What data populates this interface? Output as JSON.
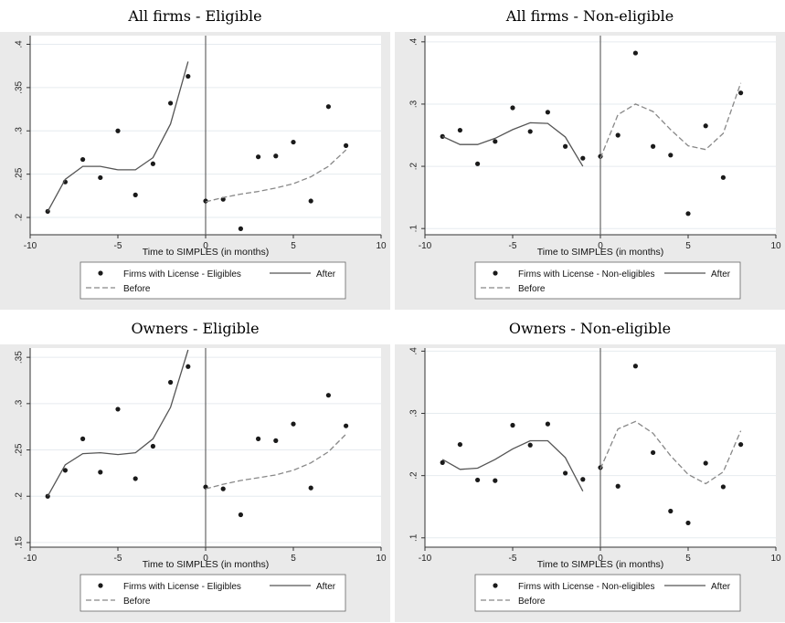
{
  "colors": {
    "panel_background": "#eaeaea",
    "plot_background": "#ffffff",
    "grid": "#e6ebef",
    "markers": "#1a1a1a",
    "after_line": "#555555",
    "before_line": "#888888",
    "event_line": "#666666"
  },
  "shared": {
    "xlabel": "Time to SIMPLES (in months)",
    "xticks": [
      -10,
      -5,
      0,
      5,
      10
    ],
    "xtick_labels": [
      "-10",
      "-5",
      "0",
      "5",
      "10"
    ],
    "legend": {
      "after": "After",
      "before": "Before"
    }
  },
  "chart_data": [
    {
      "type": "scatter",
      "title": "All firms - Eligible",
      "xlim": [
        -10,
        10
      ],
      "ylim": [
        0.18,
        0.41
      ],
      "yticks": [
        0.2,
        0.25,
        0.3,
        0.35,
        0.4
      ],
      "ytick_labels": [
        ".2",
        ".25",
        ".3",
        ".35",
        ".4"
      ],
      "legend_position": "bottom",
      "series": [
        {
          "name": "Firms with License - Eligibles",
          "style": "markers",
          "x": [
            -9,
            -8,
            -7,
            -6,
            -5,
            -4,
            -3,
            -2,
            -1,
            0,
            1,
            2,
            3,
            4,
            5,
            6,
            7,
            8
          ],
          "y": [
            0.207,
            0.241,
            0.267,
            0.246,
            0.3,
            0.226,
            0.262,
            0.332,
            0.363,
            0.219,
            0.221,
            0.187,
            0.27,
            0.271,
            0.287,
            0.219,
            0.328,
            0.283
          ]
        },
        {
          "name": "After",
          "style": "solid",
          "x": [
            -9,
            -8,
            -7,
            -6,
            -5,
            -4,
            -3,
            -2,
            -1
          ],
          "y": [
            0.207,
            0.244,
            0.259,
            0.259,
            0.255,
            0.255,
            0.269,
            0.308,
            0.38
          ]
        },
        {
          "name": "Before",
          "style": "dashed",
          "x": [
            0,
            1,
            2,
            3,
            4,
            5,
            6,
            7,
            8
          ],
          "y": [
            0.218,
            0.223,
            0.227,
            0.23,
            0.234,
            0.239,
            0.247,
            0.259,
            0.278
          ]
        }
      ]
    },
    {
      "type": "scatter",
      "title": "All firms - Non-eligible",
      "xlim": [
        -10,
        10
      ],
      "ylim": [
        0.09,
        0.41
      ],
      "yticks": [
        0.1,
        0.2,
        0.3,
        0.4
      ],
      "ytick_labels": [
        ".1",
        ".2",
        ".3",
        ".4"
      ],
      "legend_position": "bottom",
      "series": [
        {
          "name": "Firms with License - Non-eligibles",
          "style": "markers",
          "x": [
            -9,
            -8,
            -7,
            -6,
            -5,
            -4,
            -3,
            -2,
            -1,
            0,
            1,
            2,
            3,
            4,
            5,
            6,
            7,
            8
          ],
          "y": [
            0.248,
            0.258,
            0.204,
            0.24,
            0.294,
            0.256,
            0.287,
            0.232,
            0.213,
            0.216,
            0.25,
            0.382,
            0.232,
            0.218,
            0.124,
            0.265,
            0.182,
            0.318
          ]
        },
        {
          "name": "After",
          "style": "solid",
          "x": [
            -9,
            -8,
            -7,
            -6,
            -5,
            -4,
            -3,
            -2,
            -1
          ],
          "y": [
            0.248,
            0.235,
            0.235,
            0.245,
            0.259,
            0.27,
            0.269,
            0.247,
            0.2
          ]
        },
        {
          "name": "Before",
          "style": "dashed",
          "x": [
            0,
            1,
            2,
            3,
            4,
            5,
            6,
            7,
            8
          ],
          "y": [
            0.213,
            0.283,
            0.3,
            0.288,
            0.259,
            0.233,
            0.227,
            0.253,
            0.334
          ]
        }
      ]
    },
    {
      "type": "scatter",
      "title": "Owners - Eligible",
      "xlim": [
        -10,
        10
      ],
      "ylim": [
        0.145,
        0.36
      ],
      "yticks": [
        0.15,
        0.2,
        0.25,
        0.3,
        0.35
      ],
      "ytick_labels": [
        ".15",
        ".2",
        ".25",
        ".3",
        ".35"
      ],
      "legend_position": "bottom",
      "series": [
        {
          "name": "Firms with License - Eligibles",
          "style": "markers",
          "x": [
            -9,
            -8,
            -7,
            -6,
            -5,
            -4,
            -3,
            -2,
            -1,
            0,
            1,
            2,
            3,
            4,
            5,
            6,
            7,
            8
          ],
          "y": [
            0.2,
            0.228,
            0.262,
            0.226,
            0.294,
            0.219,
            0.254,
            0.323,
            0.34,
            0.21,
            0.208,
            0.18,
            0.262,
            0.26,
            0.278,
            0.209,
            0.309,
            0.276
          ]
        },
        {
          "name": "After",
          "style": "solid",
          "x": [
            -9,
            -8,
            -7,
            -6,
            -5,
            -4,
            -3,
            -2,
            -1
          ],
          "y": [
            0.2,
            0.234,
            0.246,
            0.247,
            0.245,
            0.247,
            0.262,
            0.296,
            0.358
          ]
        },
        {
          "name": "Before",
          "style": "dashed",
          "x": [
            0,
            1,
            2,
            3,
            4,
            5,
            6,
            7,
            8
          ],
          "y": [
            0.208,
            0.213,
            0.217,
            0.22,
            0.223,
            0.228,
            0.236,
            0.248,
            0.267
          ]
        }
      ]
    },
    {
      "type": "scatter",
      "title": "Owners - Non-eligible",
      "xlim": [
        -10,
        10
      ],
      "ylim": [
        0.085,
        0.405
      ],
      "yticks": [
        0.1,
        0.2,
        0.3,
        0.4
      ],
      "ytick_labels": [
        ".1",
        ".2",
        ".3",
        ".4"
      ],
      "legend_position": "bottom",
      "series": [
        {
          "name": "Firms with License - Non-eligibles",
          "style": "markers",
          "x": [
            -9,
            -8,
            -7,
            -6,
            -5,
            -4,
            -3,
            -2,
            -1,
            0,
            1,
            2,
            3,
            4,
            5,
            6,
            7,
            8
          ],
          "y": [
            0.221,
            0.25,
            0.193,
            0.192,
            0.281,
            0.249,
            0.283,
            0.204,
            0.194,
            0.213,
            0.183,
            0.376,
            0.237,
            0.143,
            0.124,
            0.22,
            0.182,
            0.25
          ]
        },
        {
          "name": "After",
          "style": "solid",
          "x": [
            -9,
            -8,
            -7,
            -6,
            -5,
            -4,
            -3,
            -2,
            -1
          ],
          "y": [
            0.226,
            0.21,
            0.212,
            0.226,
            0.243,
            0.256,
            0.256,
            0.229,
            0.175
          ]
        },
        {
          "name": "Before",
          "style": "dashed",
          "x": [
            0,
            1,
            2,
            3,
            4,
            5,
            6,
            7,
            8
          ],
          "y": [
            0.211,
            0.275,
            0.287,
            0.268,
            0.232,
            0.202,
            0.187,
            0.206,
            0.272
          ]
        }
      ]
    }
  ]
}
